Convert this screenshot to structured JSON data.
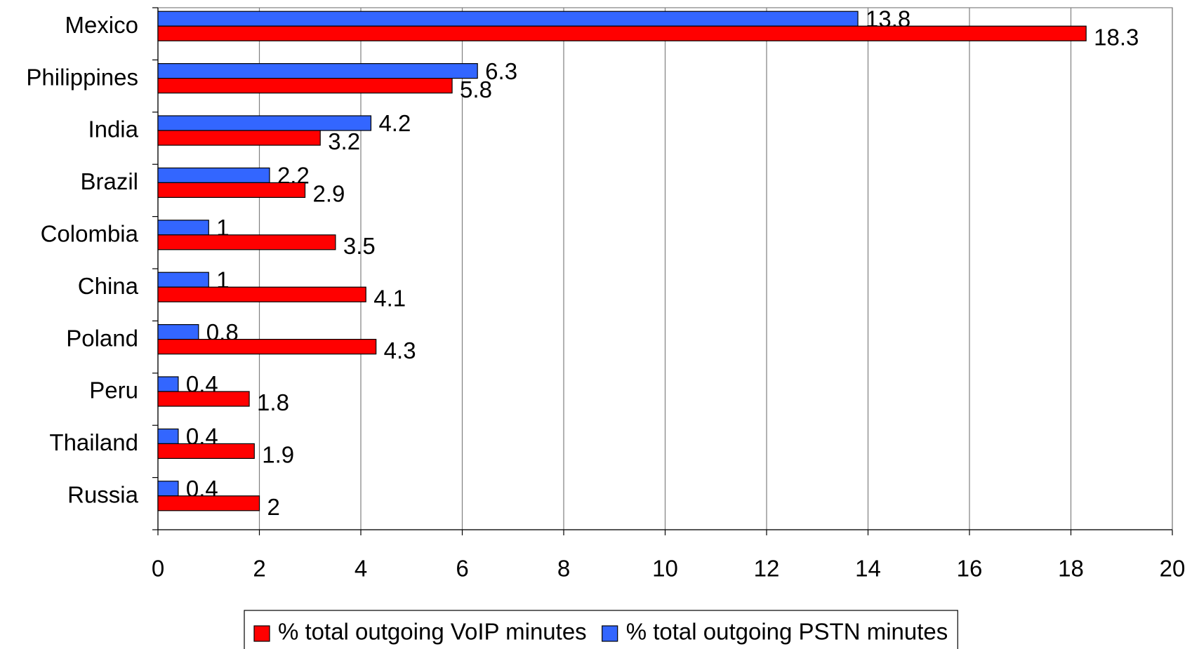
{
  "chart_data": {
    "type": "bar",
    "orientation": "horizontal",
    "categories": [
      "Mexico",
      "Philippines",
      "India",
      "Brazil",
      "Colombia",
      "China",
      "Poland",
      "Peru",
      "Thailand",
      "Russia"
    ],
    "series": [
      {
        "name": "% total outgoing VoIP minutes",
        "color": "#ff0000",
        "values": [
          18.3,
          5.8,
          3.2,
          2.9,
          3.5,
          4.1,
          4.3,
          1.8,
          1.9,
          2
        ]
      },
      {
        "name": "% total outgoing PSTN minutes",
        "color": "#3366ff",
        "values": [
          13.8,
          6.3,
          4.2,
          2.2,
          1,
          1,
          0.8,
          0.4,
          0.4,
          0.4
        ]
      }
    ],
    "xlim": [
      0,
      20
    ],
    "xticks": [
      0,
      2,
      4,
      6,
      8,
      10,
      12,
      14,
      16,
      18,
      20
    ],
    "grid": true,
    "legend": "bottom"
  }
}
